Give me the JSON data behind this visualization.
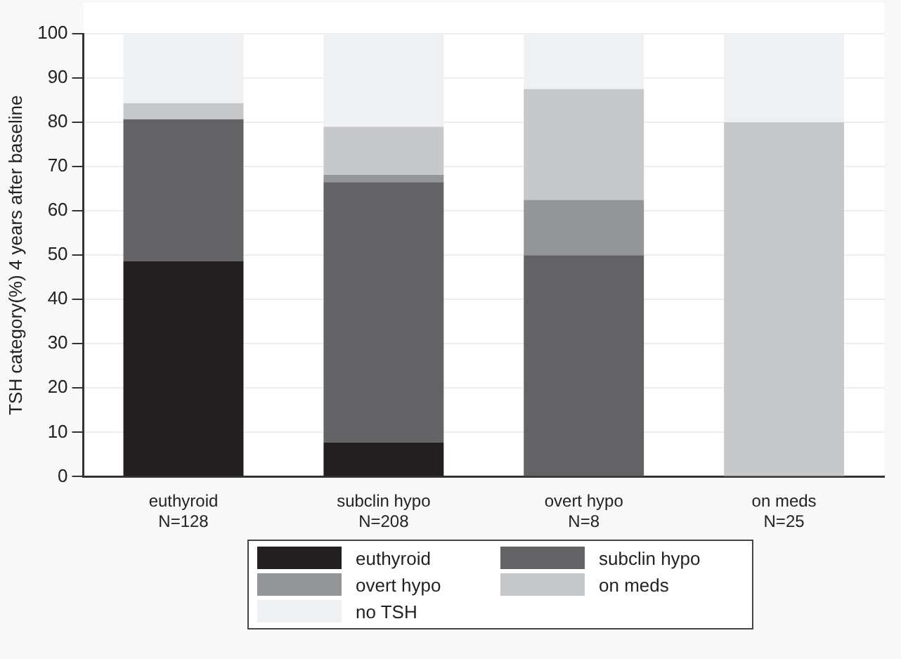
{
  "chart_data": {
    "type": "bar",
    "stacked": true,
    "ylabel": "TSH category(%) 4 years after baseline",
    "categories": [
      "euthyroid\nN=128",
      "subclin hypo\nN=208",
      "overt hypo\nN=8",
      "on meds\nN=25"
    ],
    "series": [
      {
        "name": "euthyroid",
        "color": "#231f20",
        "values": [
          48.6,
          7.7,
          0,
          0
        ]
      },
      {
        "name": "subclin hypo",
        "color": "#636365",
        "values": [
          32.1,
          58.8,
          50,
          0
        ]
      },
      {
        "name": "overt hypo",
        "color": "#939598",
        "values": [
          0,
          1.6,
          12.5,
          0
        ]
      },
      {
        "name": "on meds",
        "color": "#c7c8ca",
        "values": [
          3.6,
          10.9,
          25,
          80
        ]
      },
      {
        "name": "no TSH",
        "color": "#eff0f2",
        "values": [
          15.7,
          21.0,
          12.5,
          20
        ]
      }
    ],
    "ylim": [
      0,
      100
    ],
    "yticks": [
      0,
      10,
      20,
      30,
      40,
      50,
      60,
      70,
      80,
      90,
      100
    ],
    "grid": "y",
    "legend": "bottom"
  }
}
